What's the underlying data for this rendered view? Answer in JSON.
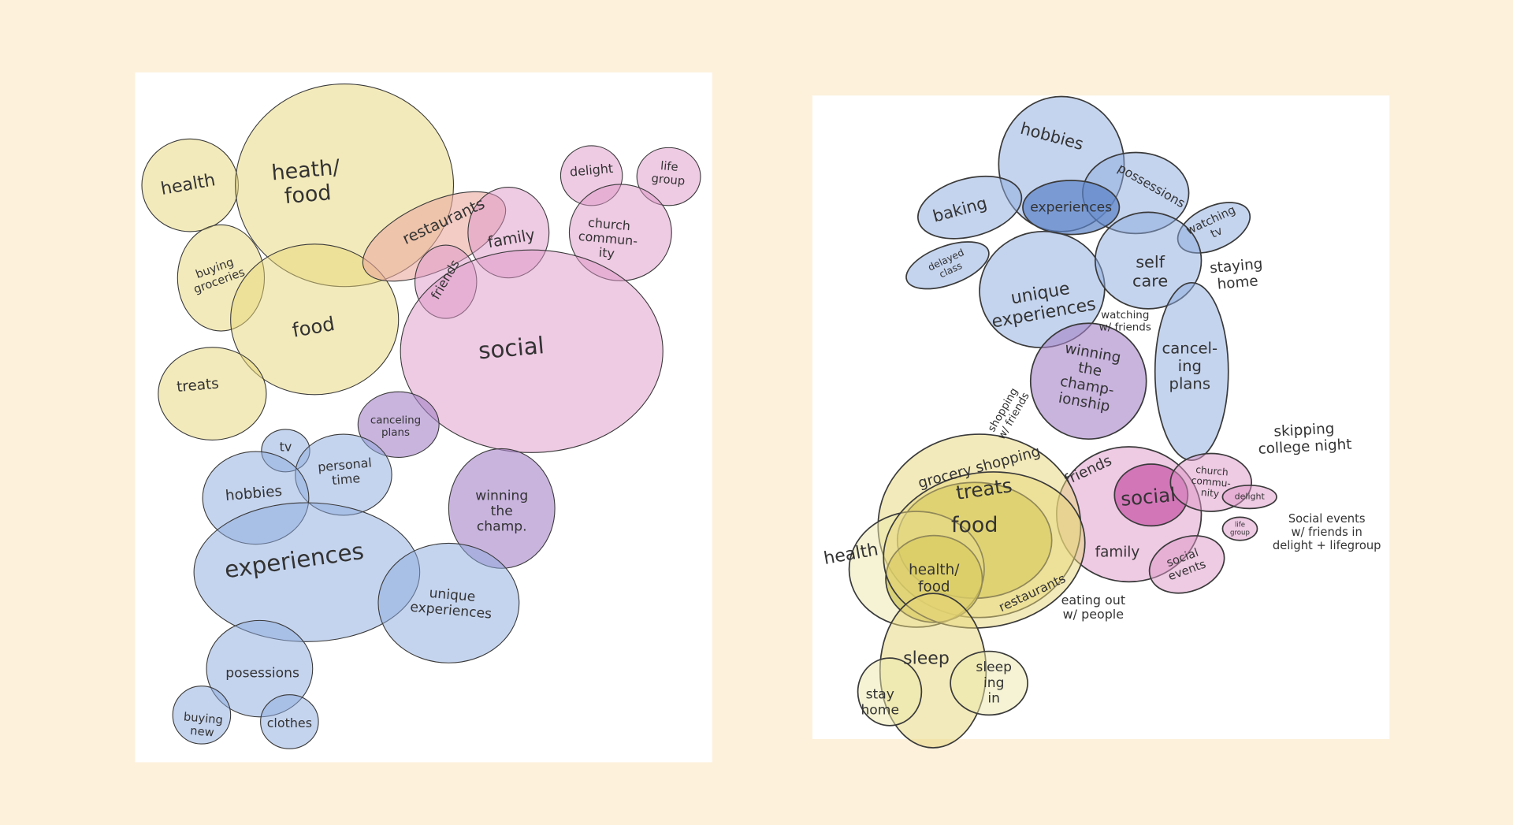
{
  "left_map": {
    "bubbles": [
      {
        "label": [
          "health"
        ]
      },
      {
        "label": [
          "heath/",
          "food"
        ]
      },
      {
        "label": [
          "buying",
          "groceries"
        ]
      },
      {
        "label": [
          "food"
        ]
      },
      {
        "label": [
          "treats"
        ]
      },
      {
        "label": [
          "restaurants"
        ]
      },
      {
        "label": [
          "friends"
        ]
      },
      {
        "label": [
          "family"
        ]
      },
      {
        "label": [
          "delight"
        ]
      },
      {
        "label": [
          "life",
          "group"
        ]
      },
      {
        "label": [
          "church",
          "commun-",
          "ity"
        ]
      },
      {
        "label": [
          "social"
        ]
      },
      {
        "label": [
          "canceling",
          "plans"
        ]
      },
      {
        "label": [
          "winning",
          "the",
          "champ."
        ]
      },
      {
        "label": [
          "tv"
        ]
      },
      {
        "label": [
          "personal",
          "time"
        ]
      },
      {
        "label": [
          "hobbies"
        ]
      },
      {
        "label": [
          "experiences"
        ]
      },
      {
        "label": [
          "unique",
          "experiences"
        ]
      },
      {
        "label": [
          "posessions"
        ]
      },
      {
        "label": [
          "buying",
          "new"
        ]
      },
      {
        "label": [
          "clothes"
        ]
      }
    ]
  },
  "right_map": {
    "bubbles": [
      {
        "label": [
          "hobbies"
        ]
      },
      {
        "label": [
          "possessions"
        ]
      },
      {
        "label": [
          "baking"
        ]
      },
      {
        "label": [
          "experiences"
        ]
      },
      {
        "label": [
          "watching",
          "tv"
        ]
      },
      {
        "label": [
          "delayed",
          "class"
        ]
      },
      {
        "label": [
          "unique",
          "experiences"
        ]
      },
      {
        "label": [
          "self",
          "care"
        ]
      },
      {
        "label": [
          "cancel-",
          "ing",
          "plans"
        ]
      },
      {
        "label": [
          "winning",
          "the",
          "champ-",
          "ionship"
        ]
      },
      {
        "label": [
          "friends"
        ]
      },
      {
        "label": [
          "social"
        ]
      },
      {
        "label": [
          "church",
          "commu-",
          "nity"
        ]
      },
      {
        "label": [
          "delight"
        ]
      },
      {
        "label": [
          "life",
          "group"
        ]
      },
      {
        "label": [
          "family"
        ]
      },
      {
        "label": [
          "social",
          "events"
        ]
      },
      {
        "label": [
          "grocery shopping"
        ]
      },
      {
        "label": [
          "treats"
        ]
      },
      {
        "label": [
          "food"
        ]
      },
      {
        "label": [
          "health"
        ]
      },
      {
        "label": [
          "health/",
          "food"
        ]
      },
      {
        "label": [
          "restaurants"
        ]
      },
      {
        "label": [
          "sleep"
        ]
      },
      {
        "label": [
          "stay",
          "home"
        ]
      },
      {
        "label": [
          "sleep",
          "ing",
          "in"
        ]
      }
    ],
    "notes": [
      {
        "label": [
          "staying",
          "home"
        ]
      },
      {
        "label": [
          "watching",
          "w/ friends"
        ]
      },
      {
        "label": [
          "shopping",
          "w/ friends"
        ]
      },
      {
        "label": [
          "skipping",
          "college night"
        ]
      },
      {
        "label": [
          "Social events",
          "w/ friends in",
          "delight + lifegroup"
        ]
      },
      {
        "label": [
          "eating out",
          "w/ people"
        ]
      }
    ]
  }
}
